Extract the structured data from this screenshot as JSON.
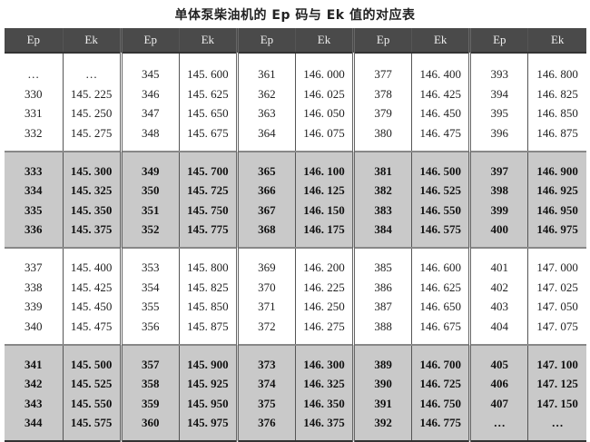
{
  "title": "单体泵柴油机的 Ep 码与 Ek 值的对应表",
  "headers": [
    "Ep",
    "Ek",
    "Ep",
    "Ek",
    "Ep",
    "Ek",
    "Ep",
    "Ek",
    "Ep",
    "Ek"
  ],
  "row_shading": [
    "white",
    "gray",
    "white",
    "gray"
  ],
  "rows": [
    [
      "…",
      "…",
      "345",
      "145. 600",
      "361",
      "146. 000",
      "377",
      "146. 400",
      "393",
      "146. 800"
    ],
    [
      "330",
      "145. 225",
      "346",
      "145. 625",
      "362",
      "146. 025",
      "378",
      "146. 425",
      "394",
      "146. 825"
    ],
    [
      "331",
      "145. 250",
      "347",
      "145. 650",
      "363",
      "146. 050",
      "379",
      "146. 450",
      "395",
      "146. 850"
    ],
    [
      "332",
      "145. 275",
      "348",
      "145. 675",
      "364",
      "146. 075",
      "380",
      "146. 475",
      "396",
      "146. 875"
    ],
    [
      "333",
      "145. 300",
      "349",
      "145. 700",
      "365",
      "146. 100",
      "381",
      "146. 500",
      "397",
      "146. 900"
    ],
    [
      "334",
      "145. 325",
      "350",
      "145. 725",
      "366",
      "146. 125",
      "382",
      "146. 525",
      "398",
      "146. 925"
    ],
    [
      "335",
      "145. 350",
      "351",
      "145. 750",
      "367",
      "146. 150",
      "383",
      "146. 550",
      "399",
      "146. 950"
    ],
    [
      "336",
      "145. 375",
      "352",
      "145. 775",
      "368",
      "146. 175",
      "384",
      "146. 575",
      "400",
      "146. 975"
    ],
    [
      "337",
      "145. 400",
      "353",
      "145. 800",
      "369",
      "146. 200",
      "385",
      "146. 600",
      "401",
      "147. 000"
    ],
    [
      "338",
      "145. 425",
      "354",
      "145. 825",
      "370",
      "146. 225",
      "386",
      "146. 625",
      "402",
      "147. 025"
    ],
    [
      "339",
      "145. 450",
      "355",
      "145. 850",
      "371",
      "146. 250",
      "387",
      "146. 650",
      "403",
      "147. 050"
    ],
    [
      "340",
      "145. 475",
      "356",
      "145. 875",
      "372",
      "146. 275",
      "388",
      "146. 675",
      "404",
      "147. 075"
    ],
    [
      "341",
      "145. 500",
      "357",
      "145. 900",
      "373",
      "146. 300",
      "389",
      "146. 700",
      "405",
      "147. 100"
    ],
    [
      "342",
      "145. 525",
      "358",
      "145. 925",
      "374",
      "146. 325",
      "390",
      "146. 725",
      "406",
      "147. 125"
    ],
    [
      "343",
      "145. 550",
      "359",
      "145. 950",
      "375",
      "146. 350",
      "391",
      "146. 750",
      "407",
      "147. 150"
    ],
    [
      "344",
      "145. 575",
      "360",
      "145. 975",
      "376",
      "146. 375",
      "392",
      "146. 775",
      "…",
      "…"
    ]
  ]
}
